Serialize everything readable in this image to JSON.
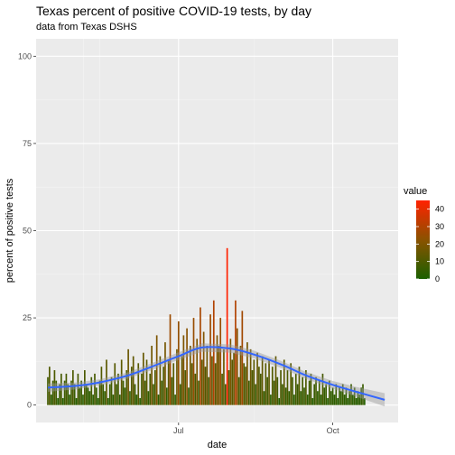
{
  "chart_data": {
    "type": "bar",
    "title": "Texas percent of positive COVID-19 tests, by day",
    "subtitle": "data from Texas DSHS",
    "xlabel": "date",
    "ylabel": "percent of positive tests",
    "ylim": [
      0,
      100
    ],
    "y_ticks": [
      0,
      25,
      50,
      75,
      100
    ],
    "xlim": [
      "2020-04-07",
      "2020-11-09"
    ],
    "x_ticks": [
      {
        "date": "2020-07-01",
        "label": "Jul"
      },
      {
        "date": "2020-10-01",
        "label": "Oct"
      }
    ],
    "fill_scale": {
      "title": "value",
      "min": 0,
      "max": 45,
      "ticks": [
        0,
        10,
        20,
        30,
        40
      ],
      "low_color": "#1b6000",
      "mid_color": "#8a5200",
      "high_color": "#ff2200"
    },
    "start_date": "2020-04-14",
    "values": [
      8,
      11,
      3,
      7,
      10,
      7,
      2,
      6,
      9,
      2,
      7,
      9,
      6,
      3,
      7,
      10,
      6,
      2,
      9,
      5,
      7,
      3,
      10,
      6,
      5,
      4,
      8,
      3,
      9,
      5,
      2,
      7,
      11,
      6,
      4,
      13,
      2,
      6,
      8,
      3,
      12,
      6,
      9,
      3,
      13,
      7,
      5,
      10,
      16,
      4,
      11,
      14,
      6,
      3,
      12,
      2,
      9,
      15,
      7,
      13,
      4,
      9,
      17,
      6,
      10,
      20,
      3,
      14,
      7,
      11,
      18,
      5,
      13,
      26,
      8,
      12,
      3,
      16,
      24,
      6,
      14,
      20,
      10,
      22,
      5,
      17,
      12,
      25,
      9,
      19,
      7,
      28,
      13,
      21,
      11,
      17,
      8,
      26,
      14,
      30,
      12,
      20,
      17,
      25,
      9,
      16,
      6,
      45,
      10,
      19,
      13,
      15,
      30,
      22,
      8,
      17,
      27,
      12,
      11,
      18,
      7,
      16,
      10,
      13,
      6,
      15,
      11,
      9,
      14,
      4,
      12,
      8,
      13,
      3,
      11,
      7,
      14,
      8,
      2,
      10,
      6,
      13,
      5,
      10,
      4,
      12,
      8,
      3,
      9,
      6,
      11,
      4,
      8,
      5,
      10,
      3,
      7,
      9,
      2,
      6,
      8,
      4,
      7,
      3,
      9,
      5,
      6,
      2,
      7,
      4,
      5,
      3,
      6,
      2,
      5,
      4,
      6,
      3,
      5,
      2,
      4,
      6,
      3,
      5,
      2,
      4,
      3,
      5,
      6,
      2
    ],
    "smooth_series": {
      "name": "loess",
      "color": "#3366ff",
      "x": [
        "2020-04-14",
        "2020-05-01",
        "2020-05-15",
        "2020-06-01",
        "2020-06-15",
        "2020-07-01",
        "2020-07-15",
        "2020-08-01",
        "2020-08-15",
        "2020-09-01",
        "2020-09-15",
        "2020-10-01",
        "2020-10-15",
        "2020-11-01"
      ],
      "y": [
        5.0,
        5.5,
        6.5,
        8.5,
        11.0,
        14.0,
        16.5,
        16.2,
        14.5,
        11.5,
        8.5,
        5.8,
        3.8,
        1.5
      ],
      "band": [
        1.2,
        1.0,
        0.9,
        0.9,
        1.0,
        1.1,
        1.2,
        1.2,
        1.1,
        1.0,
        1.0,
        1.1,
        1.4,
        1.9
      ]
    },
    "grid": true,
    "legend_position": "right"
  }
}
